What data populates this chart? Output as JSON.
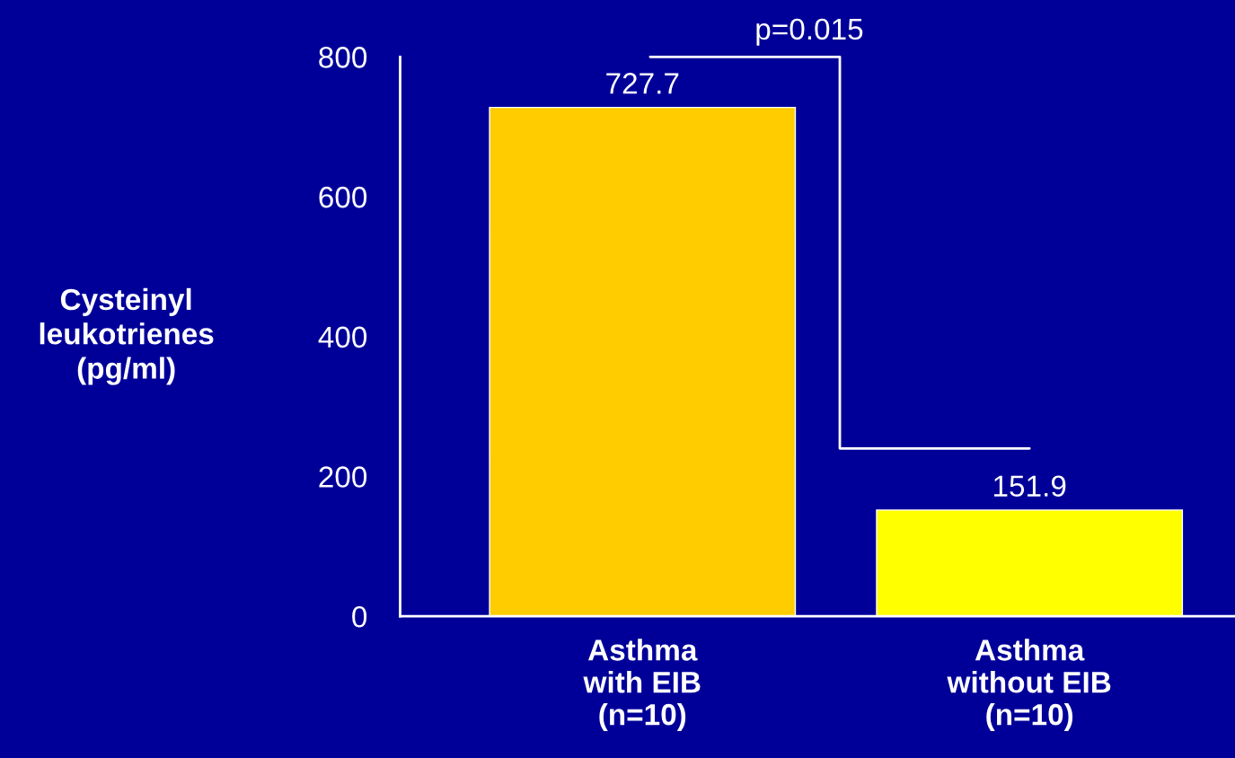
{
  "chart_data": {
    "type": "bar",
    "ylabel": "Cysteinyl\nleukotrienes\n(pg/ml)",
    "categories": [
      "Asthma\nwith EIB\n(n=10)",
      "Asthma\nwithout EIB\n(n=10)"
    ],
    "values": [
      727.7,
      151.9
    ],
    "colors": [
      "#ffcc00",
      "#ffff00"
    ],
    "ylim": [
      0,
      800
    ],
    "yticks": [
      0,
      200,
      400,
      600,
      800
    ],
    "grid": false,
    "data_labels": true,
    "annotations": [
      "p=0.015"
    ]
  }
}
